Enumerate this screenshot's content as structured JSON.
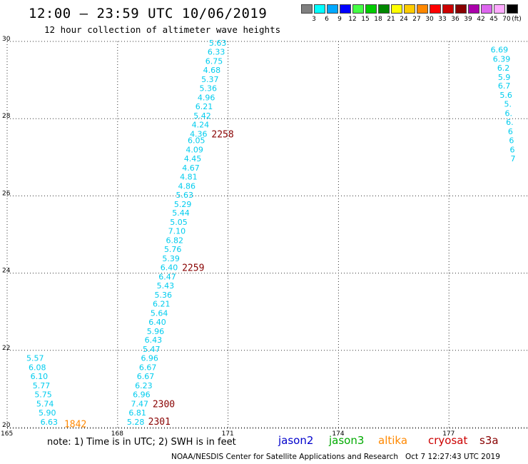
{
  "header": {
    "title": "12:00 – 23:59 UTC 10/06/2019",
    "subtitle": "12 hour collection of altimeter wave heights"
  },
  "legend": {
    "unit": "(ft)",
    "items": [
      {
        "label": "3",
        "color": "#808080"
      },
      {
        "label": "6",
        "color": "#00ffff"
      },
      {
        "label": "9",
        "color": "#00a8ff"
      },
      {
        "label": "12",
        "color": "#0000ff"
      },
      {
        "label": "15",
        "color": "#44ff44"
      },
      {
        "label": "18",
        "color": "#00cc00"
      },
      {
        "label": "21",
        "color": "#008800"
      },
      {
        "label": "24",
        "color": "#ffff00"
      },
      {
        "label": "27",
        "color": "#ffcc00"
      },
      {
        "label": "30",
        "color": "#ff8800"
      },
      {
        "label": "33",
        "color": "#ff0000"
      },
      {
        "label": "36",
        "color": "#cc0000"
      },
      {
        "label": "39",
        "color": "#880000"
      },
      {
        "label": "42",
        "color": "#aa00aa"
      },
      {
        "label": "45",
        "color": "#dd66ee"
      },
      {
        "label": "70",
        "color": "#ffaaff"
      },
      {
        "label": "",
        "color": "#000000"
      }
    ]
  },
  "map": {
    "lat_range": [
      20,
      30
    ],
    "lon_range": [
      165,
      178.5
    ],
    "lat_ticks": [
      "20",
      "22",
      "24",
      "26",
      "28",
      "30"
    ],
    "lon_ticks": [
      "165",
      "168",
      "171",
      "174",
      "177"
    ],
    "grid": "dotted"
  },
  "tracks": [
    {
      "name": "track-a",
      "color": "#00ccee",
      "points": [
        {
          "lon": 170.72,
          "lat": 29.96,
          "v": "5.63"
        },
        {
          "lon": 170.68,
          "lat": 29.73,
          "v": "6.33"
        },
        {
          "lon": 170.62,
          "lat": 29.49,
          "v": "6.75"
        },
        {
          "lon": 170.56,
          "lat": 29.26,
          "v": "4.68"
        },
        {
          "lon": 170.51,
          "lat": 29.02,
          "v": "5.37"
        },
        {
          "lon": 170.46,
          "lat": 28.79,
          "v": "5.36"
        },
        {
          "lon": 170.41,
          "lat": 28.55,
          "v": "4.96"
        },
        {
          "lon": 170.35,
          "lat": 28.32,
          "v": "6.21"
        },
        {
          "lon": 170.3,
          "lat": 28.08,
          "v": "5.42"
        },
        {
          "lon": 170.25,
          "lat": 27.85,
          "v": "4.24"
        },
        {
          "lon": 170.2,
          "lat": 27.61,
          "v": "4.36"
        },
        {
          "lon": 170.14,
          "lat": 27.44,
          "v": "6.05"
        },
        {
          "lon": 170.09,
          "lat": 27.2,
          "v": "4.09"
        },
        {
          "lon": 170.04,
          "lat": 26.97,
          "v": "4.45"
        },
        {
          "lon": 169.99,
          "lat": 26.73,
          "v": "4.67"
        },
        {
          "lon": 169.93,
          "lat": 26.5,
          "v": "4.81"
        },
        {
          "lon": 169.88,
          "lat": 26.26,
          "v": "4.86"
        },
        {
          "lon": 169.82,
          "lat": 26.03,
          "v": "5.63"
        },
        {
          "lon": 169.77,
          "lat": 25.79,
          "v": "5.29"
        },
        {
          "lon": 169.72,
          "lat": 25.56,
          "v": "5.44"
        },
        {
          "lon": 169.66,
          "lat": 25.32,
          "v": "5.05"
        },
        {
          "lon": 169.61,
          "lat": 25.09,
          "v": "7.10"
        },
        {
          "lon": 169.55,
          "lat": 24.85,
          "v": "6.82"
        },
        {
          "lon": 169.5,
          "lat": 24.62,
          "v": "5.76"
        },
        {
          "lon": 169.45,
          "lat": 24.38,
          "v": "5.39"
        },
        {
          "lon": 169.4,
          "lat": 24.15,
          "v": "6.40"
        },
        {
          "lon": 169.35,
          "lat": 23.91,
          "v": "6.47"
        },
        {
          "lon": 169.3,
          "lat": 23.68,
          "v": "5.43"
        },
        {
          "lon": 169.24,
          "lat": 23.44,
          "v": "5.36"
        },
        {
          "lon": 169.19,
          "lat": 23.21,
          "v": "6.21"
        },
        {
          "lon": 169.13,
          "lat": 22.97,
          "v": "5.64"
        },
        {
          "lon": 169.08,
          "lat": 22.74,
          "v": "6.40"
        },
        {
          "lon": 169.03,
          "lat": 22.5,
          "v": "5.96"
        },
        {
          "lon": 168.97,
          "lat": 22.27,
          "v": "6.43"
        },
        {
          "lon": 168.92,
          "lat": 22.03,
          "v": "5.47"
        },
        {
          "lon": 168.87,
          "lat": 21.8,
          "v": "6.96"
        },
        {
          "lon": 168.82,
          "lat": 21.56,
          "v": "6.67"
        },
        {
          "lon": 168.76,
          "lat": 21.33,
          "v": "6.67"
        },
        {
          "lon": 168.71,
          "lat": 21.09,
          "v": "6.23"
        },
        {
          "lon": 168.65,
          "lat": 20.86,
          "v": "6.96"
        },
        {
          "lon": 168.6,
          "lat": 20.62,
          "v": "7.47"
        },
        {
          "lon": 168.54,
          "lat": 20.39,
          "v": "6.81"
        },
        {
          "lon": 168.49,
          "lat": 20.15,
          "v": "5.28"
        }
      ]
    },
    {
      "name": "track-b",
      "color": "#00ccee",
      "points": [
        {
          "lon": 165.76,
          "lat": 21.8,
          "v": "5.57"
        },
        {
          "lon": 165.82,
          "lat": 21.56,
          "v": "6.08"
        },
        {
          "lon": 165.87,
          "lat": 21.33,
          "v": "6.10"
        },
        {
          "lon": 165.93,
          "lat": 21.09,
          "v": "5.77"
        },
        {
          "lon": 165.98,
          "lat": 20.86,
          "v": "5.75"
        },
        {
          "lon": 166.03,
          "lat": 20.62,
          "v": "5.74"
        },
        {
          "lon": 166.09,
          "lat": 20.39,
          "v": "5.90"
        },
        {
          "lon": 166.14,
          "lat": 20.15,
          "v": "6.63"
        }
      ]
    },
    {
      "name": "track-c",
      "color": "#00ccee",
      "points": [
        {
          "lon": 178.37,
          "lat": 29.79,
          "v": "6.69"
        },
        {
          "lon": 178.43,
          "lat": 29.55,
          "v": "6.39"
        },
        {
          "lon": 178.48,
          "lat": 29.32,
          "v": "6.2"
        },
        {
          "lon": 178.5,
          "lat": 29.08,
          "v": "5.9"
        },
        {
          "lon": 178.5,
          "lat": 28.85,
          "v": "6.7"
        },
        {
          "lon": 178.55,
          "lat": 28.61,
          "v": "5.6"
        },
        {
          "lon": 178.6,
          "lat": 28.38,
          "v": "5."
        },
        {
          "lon": 178.62,
          "lat": 28.14,
          "v": "6."
        },
        {
          "lon": 178.65,
          "lat": 27.91,
          "v": "6."
        },
        {
          "lon": 178.67,
          "lat": 27.67,
          "v": "6"
        },
        {
          "lon": 178.7,
          "lat": 27.44,
          "v": "6"
        },
        {
          "lon": 178.72,
          "lat": 27.2,
          "v": "6"
        },
        {
          "lon": 178.74,
          "lat": 26.97,
          "v": "7"
        }
      ]
    }
  ],
  "time_labels": [
    {
      "text": "2258",
      "lon": 170.55,
      "lat": 27.61,
      "color": "#880000"
    },
    {
      "text": "2259",
      "lon": 169.75,
      "lat": 24.15,
      "color": "#880000"
    },
    {
      "text": "2300",
      "lon": 168.95,
      "lat": 20.62,
      "color": "#880000"
    },
    {
      "text": "2301",
      "lon": 168.83,
      "lat": 20.17,
      "color": "#880000"
    },
    {
      "text": "1842",
      "lon": 166.55,
      "lat": 20.1,
      "color": "#ff8800"
    }
  ],
  "note": "note:  1) Time is in UTC;  2) SWH is in feet",
  "satellites": [
    {
      "name": "jason2",
      "color": "#0000cc"
    },
    {
      "name": "jason3",
      "color": "#00aa00"
    },
    {
      "name": "altika",
      "color": "#ff8800"
    },
    {
      "name": "cryosat",
      "color": "#cc0000"
    },
    {
      "name": "s3a",
      "color": "#880000"
    }
  ],
  "footer": {
    "agency": "NOAA/NESDIS Center for Satellite Applications and Research",
    "generated": "Oct  7 12:27:43 UTC 2019"
  }
}
